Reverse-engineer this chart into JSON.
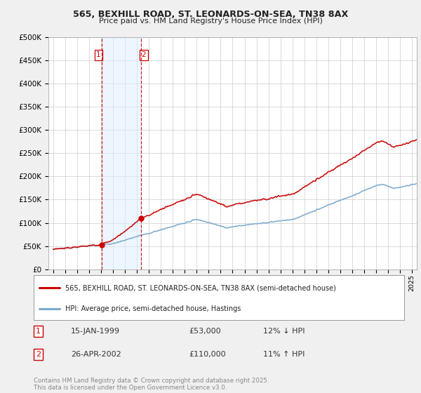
{
  "title1": "565, BEXHILL ROAD, ST. LEONARDS-ON-SEA, TN38 8AX",
  "title2": "Price paid vs. HM Land Registry's House Price Index (HPI)",
  "ytick_values": [
    0,
    50000,
    100000,
    150000,
    200000,
    250000,
    300000,
    350000,
    400000,
    450000,
    500000
  ],
  "xlim_start": 1994.6,
  "xlim_end": 2025.4,
  "ylim": [
    0,
    500000
  ],
  "line_color_red": "#cc0000",
  "line_color_blue": "#7aaacc",
  "purchase1_x": 1999.04,
  "purchase1_y": 53000,
  "purchase2_x": 2002.32,
  "purchase2_y": 110000,
  "vline1_x": 1999.04,
  "vline2_x": 2002.32,
  "vline_color": "#cc0000",
  "vshade_color": "#ddeeff",
  "vshade_alpha": 0.5,
  "legend_line1": "565, BEXHILL ROAD, ST. LEONARDS-ON-SEA, TN38 8AX (semi-detached house)",
  "legend_line2": "HPI: Average price, semi-detached house, Hastings",
  "annotation1_date": "15-JAN-1999",
  "annotation1_price": "£53,000",
  "annotation1_hpi": "12% ↓ HPI",
  "annotation2_date": "26-APR-2002",
  "annotation2_price": "£110,000",
  "annotation2_hpi": "11% ↑ HPI",
  "footer": "Contains HM Land Registry data © Crown copyright and database right 2025.\nThis data is licensed under the Open Government Licence v3.0.",
  "background_color": "#f0f0f0",
  "plot_bg_color": "#ffffff"
}
